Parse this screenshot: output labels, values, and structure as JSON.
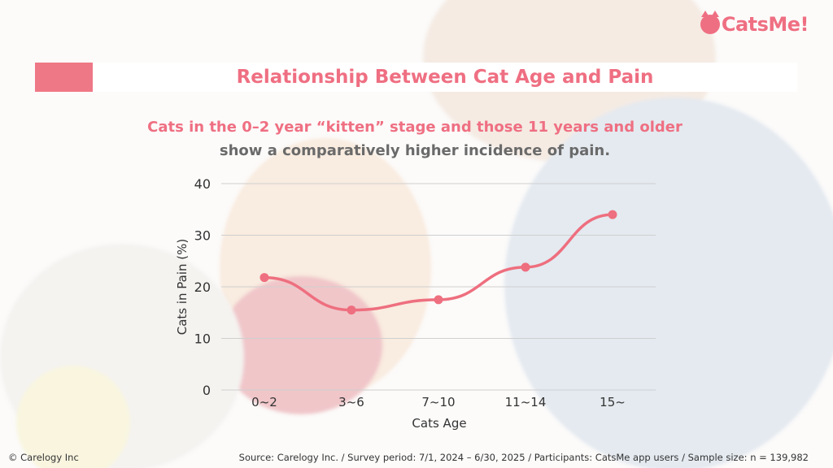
{
  "header": {
    "logo_text": "CatsMe!",
    "title": "Relationship Between Cat Age and Pain",
    "subtitle_line1": "Cats in the 0–2 year “kitten” stage and those 11 years and older",
    "subtitle_line2": "show a comparatively higher incidence of pain."
  },
  "colors": {
    "accent": "#ef6f82",
    "line": "#ee6f7f",
    "grid": "#cfcfcf",
    "text": "#333333"
  },
  "chart_data": {
    "type": "line",
    "categories": [
      "0~2",
      "3~6",
      "7~10",
      "11~14",
      "15~"
    ],
    "series": [
      {
        "values": [
          21.8,
          15.5,
          17.5,
          23.8,
          34.0
        ]
      }
    ],
    "xlabel": "Cats Age",
    "ylabel": "Cats in Pain (%)",
    "ylim": [
      0,
      40
    ],
    "yticks": [
      0,
      10,
      20,
      30,
      40
    ],
    "grid": true
  },
  "footer": {
    "copyright": "© Carelogy Inc",
    "source": "Source: Carelogy Inc. / Survey period: 7/1, 2024 – 6/30, 2025 / Participants: CatsMe app users / Sample size: n = 139,982"
  }
}
